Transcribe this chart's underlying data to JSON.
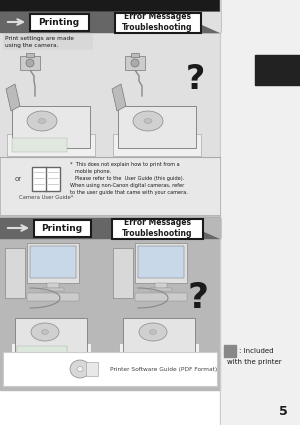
{
  "printing_label": "Printing",
  "error_label": "Error Messages\nTroubleshooting",
  "panel1_subtitle": "Print settings are made\nusing the camera.",
  "note_text": "*  This does not explain how to print from a\n   mobile phone.\n   Please refer to the  User Guide (this guide).\nWhen using non-Canon digital cameras, refer\nto the user guide that came with your camera.",
  "camera_guide_label": "Camera User Guide*",
  "or_text": "or",
  "software_guide_label": "Printer Software Guide (PDF Format)",
  "included_label1": ": Included",
  "included_label2": "with the printer",
  "page_num": "5",
  "white_bg": "#ffffff",
  "light_gray": "#e0e0e0",
  "med_gray": "#b8b8b8",
  "dark_bar": "#666666",
  "darker_bar": "#555555",
  "black": "#1a1a1a",
  "right_bg": "#d0d0d0",
  "black_tab": "#222222",
  "panel_border": "#999999",
  "note_border": "#aaaaaa",
  "sw_box_bg": "#ffffff",
  "inc_square": "#888888",
  "text_dark": "#222222",
  "text_mid": "#444444"
}
